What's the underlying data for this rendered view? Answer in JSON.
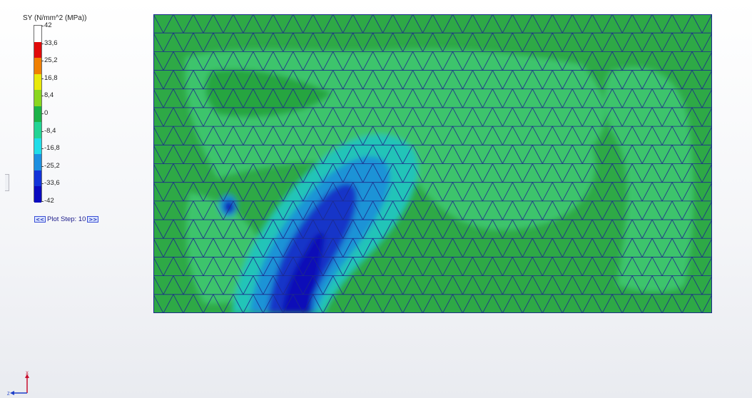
{
  "legend": {
    "title": "SY (N/mm^2 (MPa))",
    "entries": [
      {
        "label": "42",
        "color": "#ffffff"
      },
      {
        "label": "33,6",
        "color": "#e10a0a"
      },
      {
        "label": "25,2",
        "color": "#f07f00"
      },
      {
        "label": "16,8",
        "color": "#e9e90a"
      },
      {
        "label": "8,4",
        "color": "#8ad61f"
      },
      {
        "label": "0",
        "color": "#1cb247"
      },
      {
        "label": "-8,4",
        "color": "#22d494"
      },
      {
        "label": "-16,8",
        "color": "#20dde8"
      },
      {
        "label": "-25,2",
        "color": "#1c8fe0"
      },
      {
        "label": "-33,6",
        "color": "#1233d9"
      },
      {
        "label": "-42",
        "color": "#0a0ac0"
      }
    ]
  },
  "plot_step": {
    "prev": "<<",
    "label": "Plot Step: 10",
    "next": ">>"
  },
  "triad": {
    "x_label": "X",
    "z_label": "Z"
  },
  "colors": {
    "field_green": "#2ea946",
    "field_mid": "#1cb247",
    "field_light": "#3cc46c",
    "mesh_line": "#1d2a8c"
  }
}
